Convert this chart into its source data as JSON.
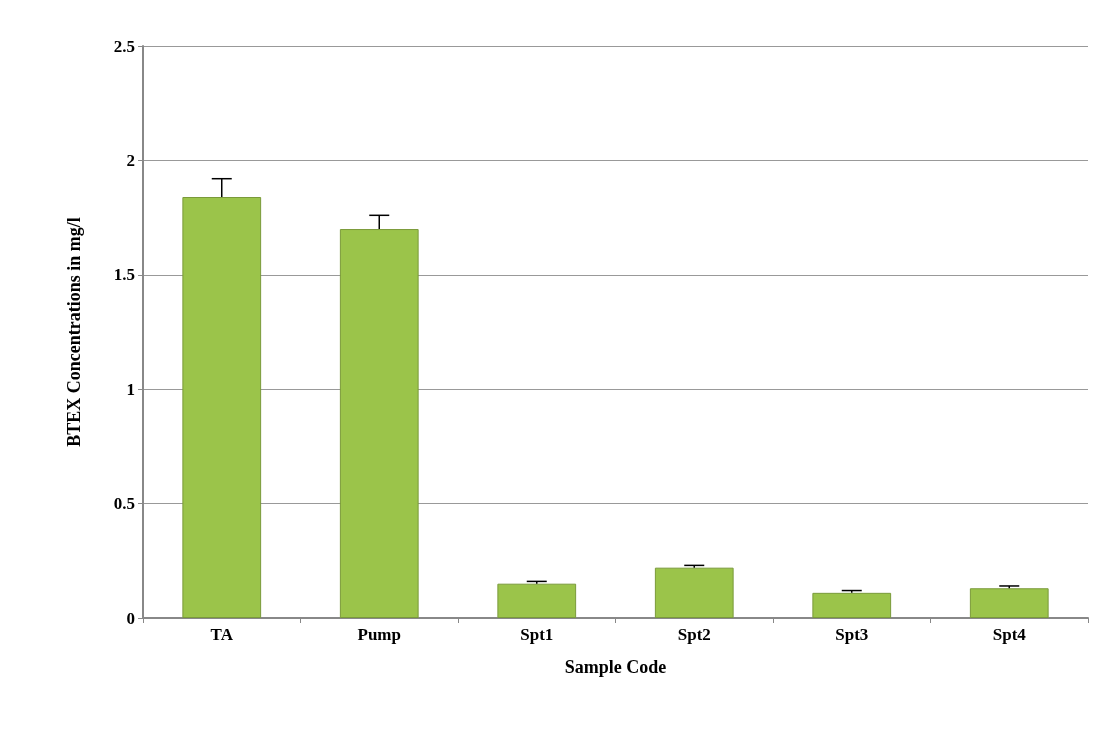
{
  "chart_data": {
    "type": "bar",
    "xlabel": "Sample Code",
    "ylabel": "BTEX Concentrations in mg/l",
    "categories": [
      "TA",
      "Pump",
      "Spt1",
      "Spt2",
      "Spt3",
      "Spt4"
    ],
    "values": [
      1.84,
      1.7,
      0.15,
      0.22,
      0.11,
      0.13
    ],
    "errors": [
      0.08,
      0.06,
      0.01,
      0.01,
      0.01,
      0.01
    ],
    "color": "#9bc44a",
    "ylim": [
      0,
      2.5
    ],
    "yticks": [
      0,
      0.5,
      1,
      1.5,
      2,
      2.5
    ],
    "grid": "y"
  }
}
